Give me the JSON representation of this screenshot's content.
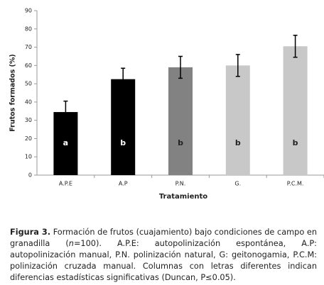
{
  "chart_data": {
    "type": "bar",
    "categories": [
      "A.P.E",
      "A.P",
      "P.N.",
      "G.",
      "P.C.M."
    ],
    "values": [
      34.5,
      52.5,
      59,
      60,
      70.5
    ],
    "errors": [
      6,
      6,
      6,
      6,
      6
    ],
    "colors": [
      "#000000",
      "#000000",
      "#828282",
      "#c8c8c8",
      "#c8c8c8"
    ],
    "group_labels": [
      "a",
      "b",
      "b",
      "b",
      "b"
    ],
    "x_label": "Tratamiento",
    "y_label": "Frutos formados (%)",
    "ylim": [
      0,
      90
    ],
    "yticks": [
      0,
      10,
      20,
      30,
      40,
      50,
      60,
      70,
      80,
      90
    ]
  },
  "caption": {
    "label": "Figura 3.",
    "text_before": " Formación de frutos (cuajamiento) bajo condiciones de campo en granadilla (",
    "italic": "n",
    "text_after": "=100). A.P.E: autopolinización espontánea, A.P: autopolinización manual, P.N. polinización natural, G: geitonogamia, P.C.M: polinización cruzada manual. Columnas con letras diferentes indican diferencias estadísticas significativas (Duncan, P≤0.05)."
  }
}
